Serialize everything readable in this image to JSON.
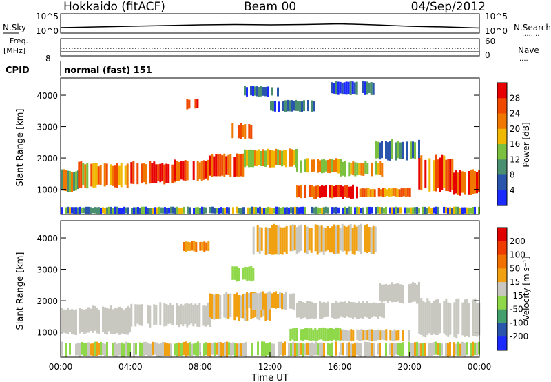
{
  "header": {
    "title": "Hokkaido (fitACF)",
    "beam": "Beam 00",
    "date": "04/Sep/2012"
  },
  "colors": {
    "power_scale": [
      "#1b2bff",
      "#2a55ad",
      "#4a8f6f",
      "#7cc040",
      "#f0b800",
      "#f07800",
      "#ef4a00",
      "#e80000"
    ],
    "velocity_scale": [
      "#1b2bff",
      "#2a55ad",
      "#43a06e",
      "#8fd84a",
      "#c8c8c0",
      "#f0a010",
      "#f07000",
      "#ef3a00",
      "#e00000"
    ],
    "gray": "#c8c8c0"
  },
  "chart_data": [
    {
      "type": "line",
      "name": "noise-panel",
      "labels": {
        "left": "N.Sky",
        "right": "N.Search",
        "left_ticks": [
          "10^5",
          "10^0"
        ],
        "right_ticks": [
          "10^5",
          "10^0"
        ],
        "right_legend": "........"
      },
      "series": [
        {
          "name": "N.Sky",
          "x": [
            0,
            2,
            4,
            6,
            8,
            10,
            12,
            14,
            16,
            18,
            20,
            22,
            24
          ],
          "y": [
            1.2,
            1.4,
            1.6,
            1.8,
            2.0,
            2.1,
            2.0,
            2.1,
            2.3,
            2.0,
            1.6,
            1.4,
            1.1
          ]
        }
      ],
      "xlim": [
        0,
        24
      ]
    },
    {
      "type": "line",
      "name": "freq-panel",
      "labels": {
        "left_top": "Freq.",
        "left_unit": "[MHz]",
        "left_tick": "8",
        "right_top_tick": "60",
        "right_bottom_tick": "0",
        "right": "Nave",
        "right_legend": "...."
      },
      "series": [
        {
          "name": "Freq",
          "x": [
            0,
            24
          ],
          "y": [
            8,
            8
          ]
        },
        {
          "name": "Nave",
          "x": [
            0,
            24
          ],
          "y": [
            52,
            53
          ]
        }
      ]
    },
    {
      "type": "table",
      "name": "cpid-panel",
      "labels": {
        "left": "CPID",
        "text": "normal (fast) 151"
      }
    },
    {
      "type": "heatmap",
      "name": "power",
      "title": "",
      "xlabel": "",
      "ylabel": "Slant Range [km]",
      "xlim": [
        0,
        24
      ],
      "ylim": [
        200,
        4550
      ],
      "yticks": [
        1000,
        2000,
        3000,
        4000
      ],
      "colorbar": {
        "label": "Power [dB]",
        "ticks": [
          "4",
          "8",
          "12",
          "16",
          "20",
          "24",
          "28"
        ]
      },
      "bands": [
        {
          "x0": 0.0,
          "x1": 1.0,
          "y0": 900,
          "y1": 1650,
          "c": [
            2,
            5
          ]
        },
        {
          "x0": 1.0,
          "x1": 2.0,
          "y0": 1000,
          "y1": 1900,
          "c": [
            3,
            6
          ]
        },
        {
          "x0": 2.0,
          "x1": 4.0,
          "y0": 1050,
          "y1": 1850,
          "c": [
            4,
            6
          ]
        },
        {
          "x0": 4.0,
          "x1": 6.5,
          "y0": 1150,
          "y1": 1900,
          "c": [
            5,
            7
          ]
        },
        {
          "x0": 6.5,
          "x1": 8.5,
          "y0": 1250,
          "y1": 1950,
          "c": [
            5,
            7
          ]
        },
        {
          "x0": 8.5,
          "x1": 10.5,
          "y0": 1350,
          "y1": 2150,
          "c": [
            5,
            7
          ]
        },
        {
          "x0": 9.8,
          "x1": 11.0,
          "y0": 2600,
          "y1": 3100,
          "c": [
            4,
            6
          ]
        },
        {
          "x0": 10.5,
          "x1": 13.5,
          "y0": 1700,
          "y1": 2300,
          "c": [
            3,
            5
          ]
        },
        {
          "x0": 13.5,
          "x1": 16.0,
          "y0": 1500,
          "y1": 2000,
          "c": [
            3,
            5
          ]
        },
        {
          "x0": 16.0,
          "x1": 18.5,
          "y0": 1400,
          "y1": 1900,
          "c": [
            3,
            5
          ]
        },
        {
          "x0": 13.5,
          "x1": 17.0,
          "y0": 700,
          "y1": 1150,
          "c": [
            5,
            7
          ]
        },
        {
          "x0": 17.0,
          "x1": 20.0,
          "y0": 750,
          "y1": 1050,
          "c": [
            4,
            6
          ]
        },
        {
          "x0": 18.0,
          "x1": 20.5,
          "y0": 1900,
          "y1": 2600,
          "c": [
            1,
            3
          ]
        },
        {
          "x0": 20.5,
          "x1": 22.5,
          "y0": 900,
          "y1": 2100,
          "c": [
            4,
            7
          ]
        },
        {
          "x0": 22.5,
          "x1": 24.0,
          "y0": 800,
          "y1": 1650,
          "c": [
            5,
            7
          ]
        },
        {
          "x0": 12.0,
          "x1": 14.5,
          "y0": 3450,
          "y1": 3850,
          "c": [
            0,
            2
          ]
        },
        {
          "x0": 15.5,
          "x1": 18.0,
          "y0": 4000,
          "y1": 4450,
          "c": [
            0,
            2
          ]
        },
        {
          "x0": 10.5,
          "x1": 12.5,
          "y0": 3950,
          "y1": 4300,
          "c": [
            0,
            2
          ]
        },
        {
          "x0": 7.2,
          "x1": 7.8,
          "y0": 3550,
          "y1": 3900,
          "c": [
            6,
            7
          ]
        },
        {
          "x0": 0.0,
          "x1": 24.0,
          "y0": 200,
          "y1": 450,
          "c": [
            0,
            4
          ]
        }
      ]
    },
    {
      "type": "heatmap",
      "name": "velocity",
      "title": "",
      "xlabel": "Time UT",
      "ylabel": "Slant Range [km]",
      "xlim": [
        0,
        24
      ],
      "ylim": [
        200,
        4550
      ],
      "yticks": [
        1000,
        2000,
        3000,
        4000
      ],
      "xticks": [
        "00:00",
        "04:00",
        "08:00",
        "12:00",
        "16:00",
        "20:00",
        "00:00"
      ],
      "colorbar": {
        "label": "Velocity [m s⁻¹]",
        "ticks": [
          "200",
          "100",
          "50",
          "15",
          "-15",
          "-50",
          "-100",
          "-200"
        ]
      },
      "bands": [
        {
          "x0": 0.0,
          "x1": 4.0,
          "y0": 900,
          "y1": 1850,
          "c": [
            4,
            4
          ]
        },
        {
          "x0": 4.0,
          "x1": 8.5,
          "y0": 1150,
          "y1": 1950,
          "c": [
            4,
            4
          ]
        },
        {
          "x0": 8.5,
          "x1": 12.0,
          "y0": 1350,
          "y1": 2300,
          "c": [
            4,
            5
          ]
        },
        {
          "x0": 9.8,
          "x1": 11.0,
          "y0": 2600,
          "y1": 3100,
          "c": [
            3,
            3
          ]
        },
        {
          "x0": 10.5,
          "x1": 13.5,
          "y0": 1700,
          "y1": 2300,
          "c": [
            4,
            5
          ]
        },
        {
          "x0": 13.5,
          "x1": 18.5,
          "y0": 1400,
          "y1": 2000,
          "c": [
            4,
            4
          ]
        },
        {
          "x0": 13.0,
          "x1": 16.0,
          "y0": 700,
          "y1": 1150,
          "c": [
            3,
            3
          ]
        },
        {
          "x0": 16.0,
          "x1": 20.0,
          "y0": 700,
          "y1": 1100,
          "c": [
            4,
            5
          ]
        },
        {
          "x0": 18.0,
          "x1": 20.5,
          "y0": 1900,
          "y1": 2600,
          "c": [
            4,
            4
          ]
        },
        {
          "x0": 20.5,
          "x1": 24.0,
          "y0": 800,
          "y1": 2100,
          "c": [
            4,
            4
          ]
        },
        {
          "x0": 11.0,
          "x1": 18.0,
          "y0": 3450,
          "y1": 4450,
          "c": [
            4,
            5
          ]
        },
        {
          "x0": 7.0,
          "x1": 8.5,
          "y0": 3550,
          "y1": 3900,
          "c": [
            5,
            6
          ]
        },
        {
          "x0": 0.0,
          "x1": 24.0,
          "y0": 200,
          "y1": 700,
          "c": [
            3,
            5
          ]
        }
      ]
    }
  ]
}
